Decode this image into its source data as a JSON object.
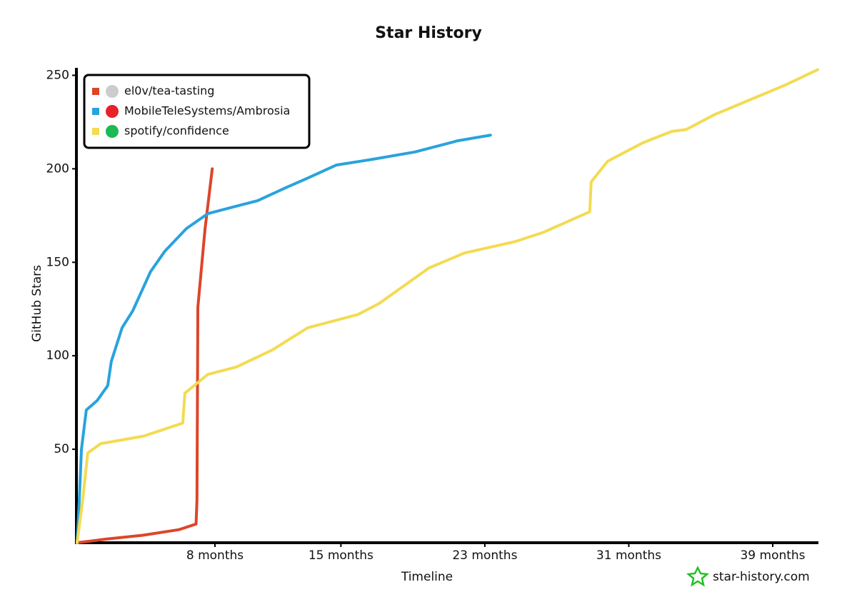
{
  "chart_data": {
    "type": "line",
    "title": "Star History",
    "x_label": "Timeline",
    "y_label": "GitHub Stars",
    "watermark": "star-history.com",
    "xlim": [
      0.3,
      41.5
    ],
    "ylim": [
      0,
      254
    ],
    "xticks": [
      {
        "value": 8,
        "label": "8 months"
      },
      {
        "value": 15,
        "label": "15 months"
      },
      {
        "value": 23,
        "label": "23 months"
      },
      {
        "value": 31,
        "label": "31 months"
      },
      {
        "value": 39,
        "label": "39 months"
      }
    ],
    "yticks": [
      50,
      100,
      150,
      200,
      250
    ],
    "legend": "top-left",
    "series": [
      {
        "name": "el0v/tea-tasting",
        "color": "#dd4528",
        "x": [
          0.34,
          2.0,
          4.0,
          6.0,
          6.95,
          7.0,
          7.05,
          7.45,
          7.85
        ],
        "values": [
          0,
          2,
          4,
          7,
          10,
          23,
          126,
          168,
          200
        ]
      },
      {
        "name": "MobileTeleSystems/Ambrosia",
        "color": "#28a3dd",
        "x": [
          0.34,
          0.46,
          0.58,
          0.85,
          1.45,
          2.04,
          2.24,
          2.84,
          3.43,
          4.42,
          5.22,
          6.41,
          7.6,
          8.79,
          10.38,
          11.96,
          13.15,
          14.74,
          16.72,
          19.11,
          21.49,
          23.31
        ],
        "values": [
          0,
          23,
          50,
          71,
          76,
          84,
          97,
          115,
          124,
          145,
          156,
          168,
          176,
          179,
          183,
          190,
          195,
          202,
          205,
          209,
          215,
          218
        ]
      },
      {
        "name": "spotify/confidence",
        "color": "#f3db52",
        "x": [
          0.34,
          0.65,
          0.93,
          1.65,
          4.03,
          6.21,
          6.33,
          7.6,
          9.19,
          11.17,
          13.16,
          15.93,
          17.13,
          19.9,
          21.88,
          24.66,
          26.25,
          28.83,
          28.91,
          29.82,
          31.8,
          33.39,
          34.19,
          35.77,
          37.76,
          39.74,
          41.5
        ],
        "values": [
          0,
          23,
          48,
          53,
          57,
          64,
          80,
          90,
          94,
          103,
          115,
          122,
          128,
          147,
          155,
          161,
          166,
          177,
          193,
          204,
          214,
          220,
          221,
          229,
          237,
          245,
          253
        ]
      }
    ]
  }
}
